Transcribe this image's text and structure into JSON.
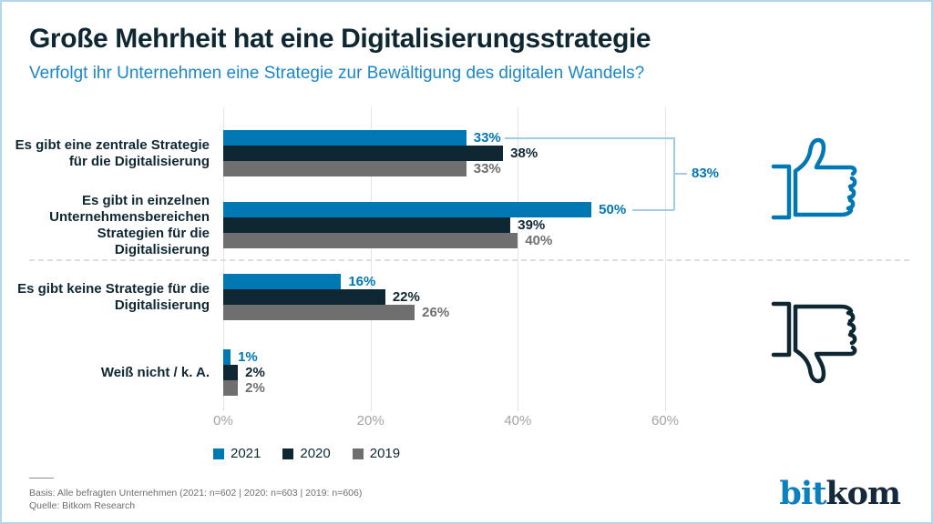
{
  "header": {
    "title": "Große Mehrheit hat eine Digitalisierungsstrategie",
    "subtitle": "Verfolgt ihr Unternehmen eine Strategie zur Bewältigung des digitalen Wandels?"
  },
  "chart_data": {
    "type": "bar",
    "orientation": "horizontal",
    "unit": "%",
    "categories": [
      "Es gibt eine zentrale Strategie\nfür die Digitalisierung",
      "Es gibt in einzelnen\nUnternehmensbereichen\nStrategien für die\nDigitalisierung",
      "Es gibt keine Strategie für die\nDigitalisierung",
      "Weiß nicht / k. A."
    ],
    "series": [
      {
        "name": "2021",
        "color": "#0078b4",
        "values": [
          33,
          50,
          16,
          1
        ]
      },
      {
        "name": "2020",
        "color": "#0e2733",
        "values": [
          38,
          39,
          22,
          2
        ]
      },
      {
        "name": "2019",
        "color": "#6f6f6f",
        "values": [
          33,
          40,
          26,
          2
        ]
      }
    ],
    "x_ticks": [
      0,
      20,
      40,
      60
    ],
    "xlim": [
      0,
      60
    ],
    "grid": true,
    "legend_position": "bottom",
    "annotation": {
      "label": "83%",
      "applies_to": "sum of 2021 values of first two categories"
    }
  },
  "icons": {
    "positive": "thumbs-up",
    "negative": "thumbs-down"
  },
  "footer": {
    "basis": "Basis: Alle befragten Unternehmen (2021: n=602 | 2020: n=603 | 2019: n=606)",
    "source": "Quelle: Bitkom Research"
  },
  "logo": {
    "bit": "bit",
    "kom": "kom"
  },
  "colors": {
    "accent_blue": "#0078b4",
    "dark_navy": "#0e2733",
    "gray": "#6f6f6f",
    "subtitle_blue": "#1b87c9",
    "bracket_blue": "#9fcde9",
    "border_blue": "#b3d7ea"
  }
}
